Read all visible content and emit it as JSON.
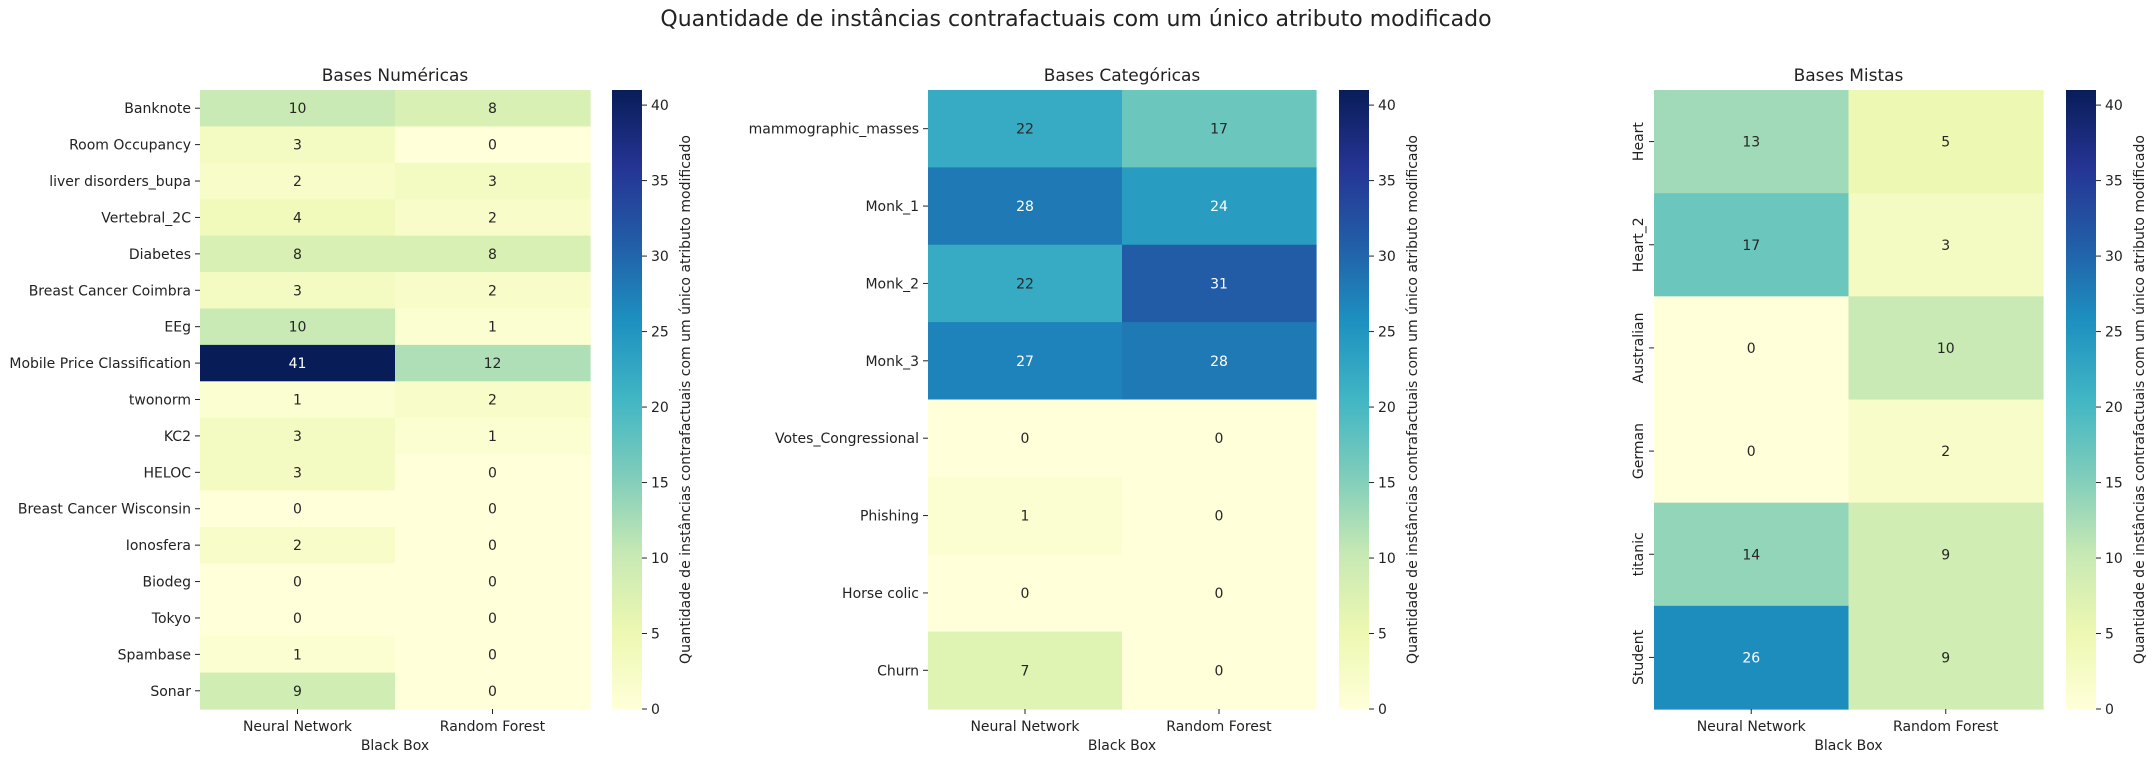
{
  "figure_title": "Quantidade de instâncias contrafactuais com um único atributo modificado",
  "colormap": "YlGnBu",
  "colormap_stops": [
    "#ffffd9",
    "#edf8b1",
    "#c7e9b4",
    "#7fcdbb",
    "#41b6c4",
    "#1d91c0",
    "#225ea8",
    "#253494",
    "#081d58"
  ],
  "colorbar": {
    "min": 0,
    "max": 41,
    "ticks": [
      0,
      5,
      10,
      15,
      20,
      25,
      30,
      35,
      40
    ],
    "label": "Quantidade de instâncias contrafactuais com um único atributo modificado"
  },
  "chart_data": [
    {
      "type": "heatmap",
      "title": "Bases Numéricas",
      "xlabel": "Black Box",
      "ylabel": "",
      "x": [
        "Neural Network",
        "Random Forest"
      ],
      "y": [
        "Banknote",
        "Room Occupancy",
        "liver disorders_bupa",
        "Vertebral_2C",
        "Diabetes",
        "Breast Cancer Coimbra",
        "EEg",
        "Mobile Price Classification",
        "twonorm",
        "KC2",
        "HELOC",
        "Breast Cancer Wisconsin",
        "Ionosfera",
        "Biodeg",
        "Tokyo",
        "Spambase",
        "Sonar"
      ],
      "values": [
        [
          10,
          8
        ],
        [
          3,
          0
        ],
        [
          2,
          3
        ],
        [
          4,
          2
        ],
        [
          8,
          8
        ],
        [
          3,
          2
        ],
        [
          10,
          1
        ],
        [
          41,
          12
        ],
        [
          1,
          2
        ],
        [
          3,
          1
        ],
        [
          3,
          0
        ],
        [
          0,
          0
        ],
        [
          2,
          0
        ],
        [
          0,
          0
        ],
        [
          0,
          0
        ],
        [
          1,
          0
        ],
        [
          9,
          0
        ]
      ],
      "ylabel_rotation": "horizontal"
    },
    {
      "type": "heatmap",
      "title": "Bases Categóricas",
      "xlabel": "Black Box",
      "ylabel": "",
      "x": [
        "Neural Network",
        "Random Forest"
      ],
      "y": [
        "mammographic_masses",
        "Monk_1",
        "Monk_2",
        "Monk_3",
        "Votes_Congressional",
        "Phishing",
        "Horse colic",
        "Churn"
      ],
      "values": [
        [
          22,
          17
        ],
        [
          28,
          24
        ],
        [
          22,
          31
        ],
        [
          27,
          28
        ],
        [
          0,
          0
        ],
        [
          1,
          0
        ],
        [
          0,
          0
        ],
        [
          7,
          0
        ]
      ],
      "ylabel_rotation": "horizontal"
    },
    {
      "type": "heatmap",
      "title": "Bases Mistas",
      "xlabel": "Black Box",
      "ylabel": "",
      "x": [
        "Neural Network",
        "Random Forest"
      ],
      "y": [
        "Heart",
        "Heart_2",
        "Australian",
        "German",
        "titanic",
        "Student"
      ],
      "values": [
        [
          13,
          5
        ],
        [
          17,
          3
        ],
        [
          0,
          10
        ],
        [
          0,
          2
        ],
        [
          14,
          9
        ],
        [
          26,
          9
        ]
      ],
      "ylabel_rotation": "vertical"
    }
  ]
}
